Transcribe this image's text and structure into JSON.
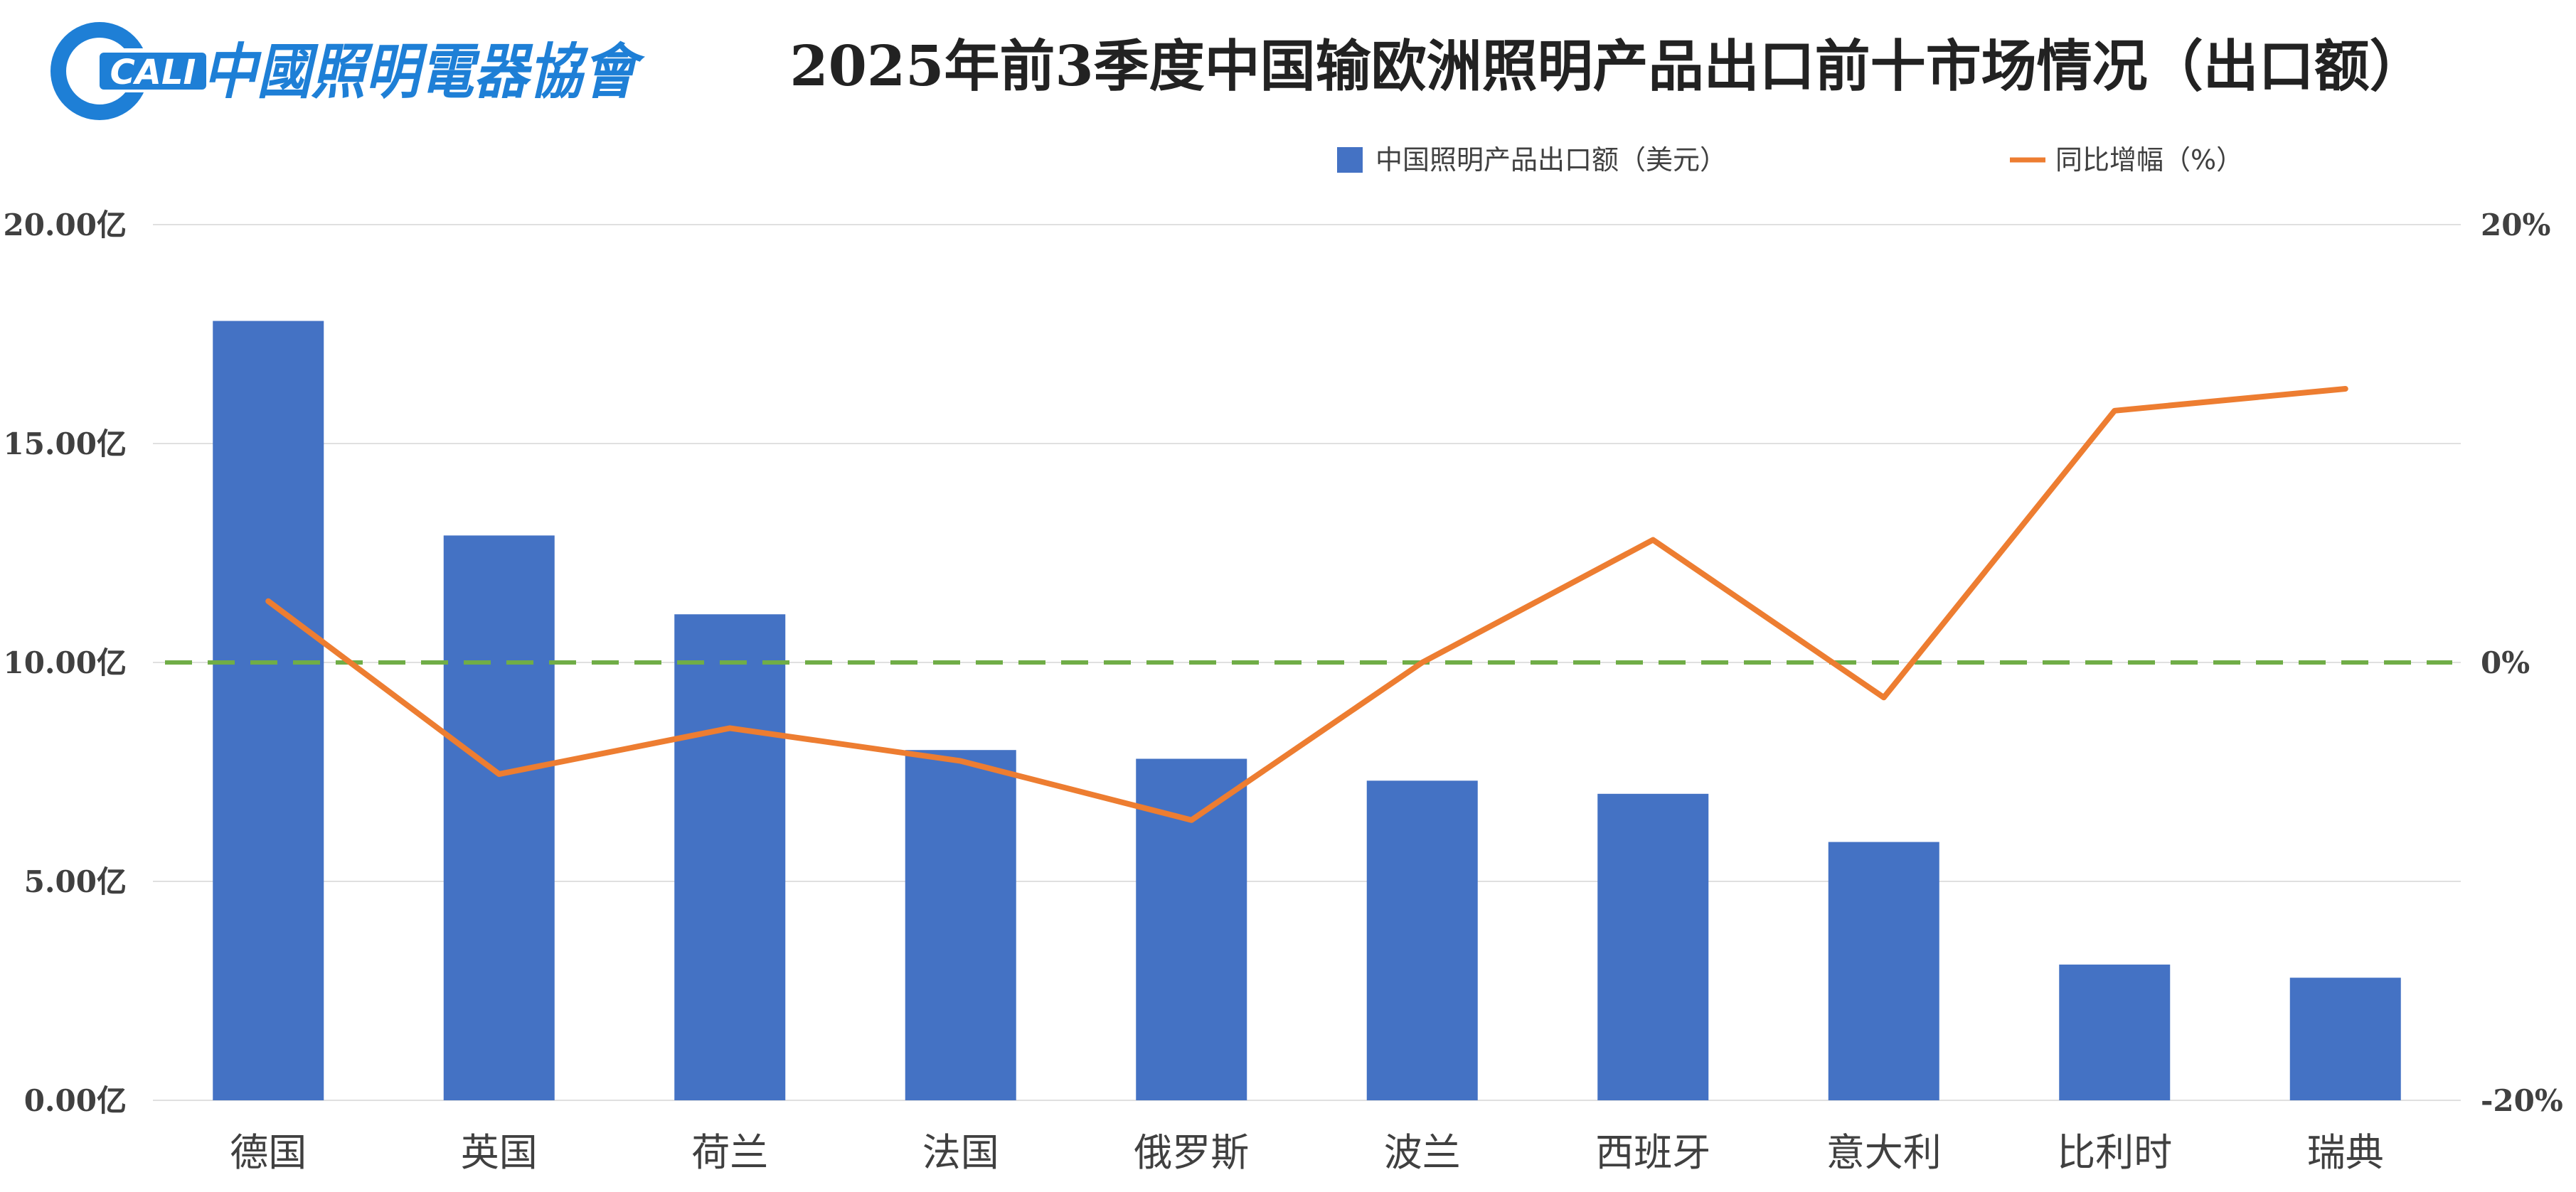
{
  "header": {
    "logo_text": "中國照明電器協會",
    "logo_mark": "CALI"
  },
  "colors": {
    "bar": "#4472C4",
    "line": "#ED7D31",
    "zero_line": "#70AD47",
    "grid": "#E0E0E0",
    "logo": "#1E7FD6"
  },
  "chart_data": {
    "type": "bar",
    "title": "2025年前3季度中国输欧洲照明产品出口前十市场情况（出口额）",
    "categories": [
      "德国",
      "英国",
      "荷兰",
      "法国",
      "俄罗斯",
      "波兰",
      "西班牙",
      "意大利",
      "比利时",
      "瑞典"
    ],
    "series": [
      {
        "name": "中国照明产品出口额（美元）",
        "type": "bar",
        "axis": "left",
        "values": [
          17.8,
          12.9,
          11.1,
          8.0,
          7.8,
          7.3,
          7.0,
          5.9,
          3.1,
          2.8
        ]
      },
      {
        "name": "同比增幅（%）",
        "type": "line",
        "axis": "right",
        "values": [
          2.8,
          -5.1,
          -3.0,
          -4.5,
          -7.2,
          0.0,
          5.6,
          -1.6,
          11.5,
          12.5
        ]
      }
    ],
    "y_left": {
      "range": [
        0,
        20
      ],
      "ticks": [
        0,
        5,
        10,
        15,
        20
      ],
      "tick_labels": [
        "0.00亿",
        "5.00亿",
        "10.00亿",
        "15.00亿",
        "20.00亿"
      ]
    },
    "y_right": {
      "range": [
        -20,
        20
      ],
      "ticks": [
        -20,
        0,
        20
      ],
      "tick_labels": [
        "-20%",
        "0%",
        "20%"
      ]
    },
    "reference_line": {
      "axis": "right",
      "value": 0,
      "style": "dashed"
    },
    "grid": true,
    "legend_position": "top"
  }
}
